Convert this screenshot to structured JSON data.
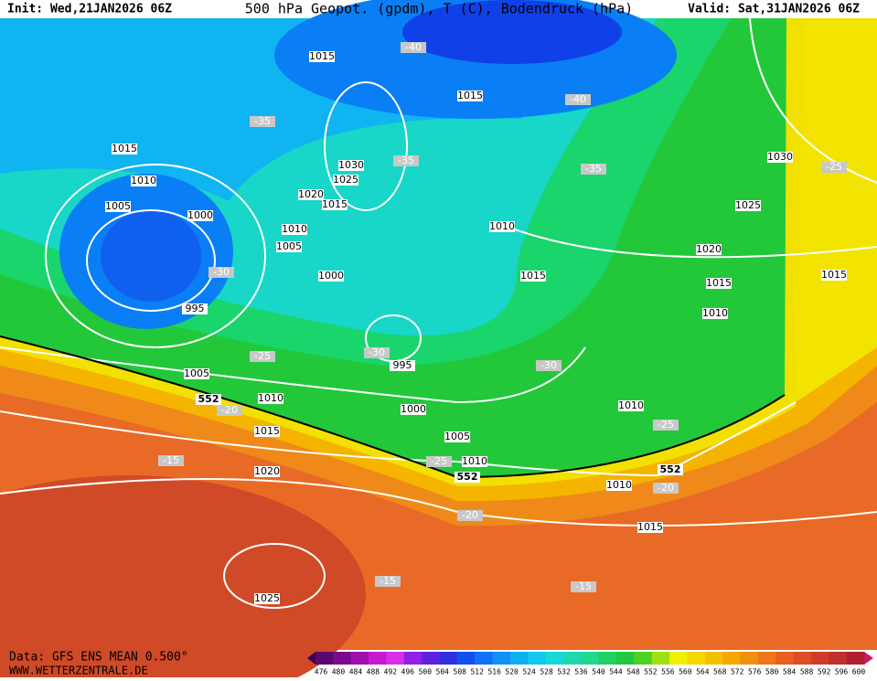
{
  "header": {
    "init": "Init: Wed,21JAN2026 06Z",
    "title": "500 hPa Geopot. (gpdm), T (C), Bodendruck (hPa)",
    "valid": "Valid: Sat,31JAN2026 06Z"
  },
  "footer": {
    "source": "Data: GFS ENS MEAN 0.500°",
    "site": "WWW.WETTERZENTRALE.DE"
  },
  "colorbar": {
    "labels": [
      476,
      480,
      484,
      488,
      492,
      496,
      500,
      504,
      508,
      512,
      516,
      520,
      524,
      528,
      532,
      536,
      540,
      544,
      548,
      552,
      556,
      560,
      564,
      568,
      572,
      576,
      580,
      584,
      588,
      592,
      596,
      600
    ],
    "colors": [
      "#5a0a6e",
      "#7a0a8e",
      "#a010b0",
      "#c818d0",
      "#d830e8",
      "#9020e8",
      "#6020e0",
      "#3030e0",
      "#1050f0",
      "#1070f8",
      "#1090f8",
      "#10b0f0",
      "#10c8f0",
      "#18d8d8",
      "#20d8b0",
      "#20d890",
      "#20d060",
      "#20c840",
      "#50d020",
      "#a0e010",
      "#f0f000",
      "#f5d800",
      "#f5c000",
      "#f4a800",
      "#f09010",
      "#ec7818",
      "#e86020",
      "#e04c24",
      "#d03c28",
      "#c0302c",
      "#b02030"
    ]
  },
  "map": {
    "pressure_labels": [
      "1015",
      "1015",
      "1015",
      "1010",
      "1030",
      "1025",
      "1020",
      "1015",
      "1005",
      "1000",
      "1010",
      "1005",
      "1010",
      "1030",
      "1025",
      "1020",
      "1015",
      "1015",
      "1015",
      "1010",
      "1000",
      "995",
      "995",
      "1005",
      "1010",
      "1000",
      "1005",
      "1010",
      "1010",
      "1015",
      "1020",
      "1010",
      "1015",
      "1025"
    ],
    "temperature_labels": [
      "-40",
      "-40",
      "-35",
      "-35",
      "-35",
      "-25",
      "-30",
      "-30",
      "-30",
      "-25",
      "-20",
      "-25",
      "-25",
      "-15",
      "-20",
      "-20",
      "-15",
      "-15"
    ],
    "height_labels": [
      "552",
      "552",
      "552"
    ]
  }
}
